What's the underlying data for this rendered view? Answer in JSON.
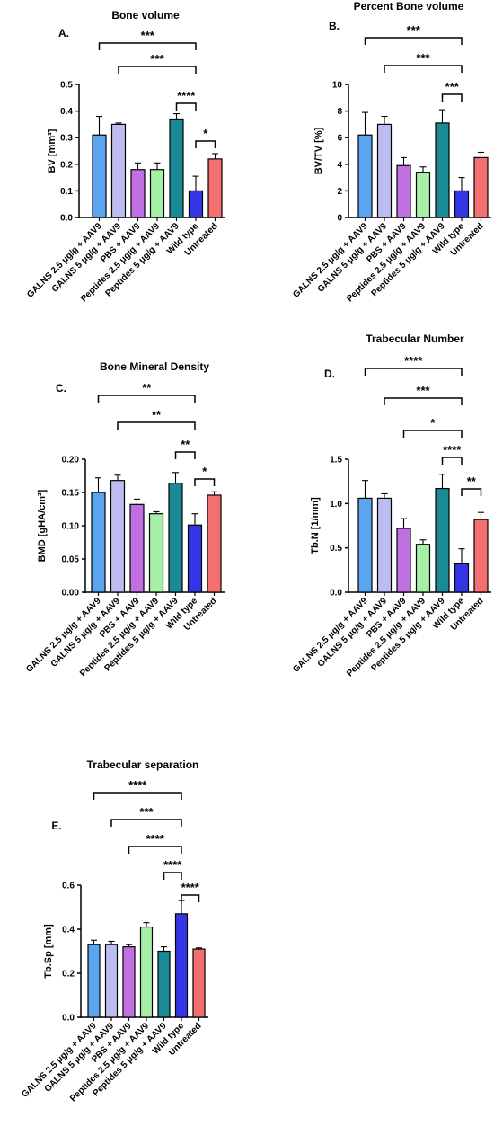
{
  "categories": [
    "GALNS 2.5 μg/g + AAV9",
    "GALNS 5 μg/g + AAV9",
    "PBS + AAV9",
    "Peptides 2.5 μg/g + AAV9",
    "Peptides 5 μg/g + AAV9",
    "Wild type",
    "Untreated"
  ],
  "bar_colors": [
    "#5aa6ee",
    "#bcbcf0",
    "#c070e0",
    "#a6f0a6",
    "#1a8a96",
    "#3535e8",
    "#f47070"
  ],
  "chart_data": [
    {
      "type": "bar",
      "panel": "A.",
      "title": "Bone volume",
      "ylabel": "BV [mm³]",
      "ylim": [
        0,
        0.5
      ],
      "yticks": [
        "0.0",
        "0.1",
        "0.2",
        "0.3",
        "0.4",
        "0.5"
      ],
      "values": [
        0.31,
        0.35,
        0.18,
        0.18,
        0.37,
        0.1,
        0.22
      ],
      "errors": [
        0.07,
        0.005,
        0.025,
        0.025,
        0.02,
        0.055,
        0.02
      ],
      "significance": [
        {
          "from": 0,
          "to": 5,
          "label": "***"
        },
        {
          "from": 1,
          "to": 5,
          "label": "***"
        },
        {
          "from": 4,
          "to": 5,
          "label": "****"
        },
        {
          "from": 5,
          "to": 6,
          "label": "*"
        }
      ]
    },
    {
      "type": "bar",
      "panel": "B.",
      "title": "Percent Bone volume",
      "ylabel": "BV/TV [%]",
      "ylim": [
        0,
        10
      ],
      "yticks": [
        "0",
        "2",
        "4",
        "6",
        "8",
        "10"
      ],
      "values": [
        6.2,
        7.0,
        3.9,
        3.4,
        7.1,
        2.0,
        4.5
      ],
      "errors": [
        1.7,
        0.6,
        0.6,
        0.4,
        1.0,
        1.0,
        0.4
      ],
      "significance": [
        {
          "from": 0,
          "to": 5,
          "label": "***"
        },
        {
          "from": 1,
          "to": 5,
          "label": "***"
        },
        {
          "from": 4,
          "to": 5,
          "label": "***"
        }
      ]
    },
    {
      "type": "bar",
      "panel": "C.",
      "title": "Bone Mineral Density",
      "ylabel": "BMD [gHA/cm³]",
      "ylim": [
        0,
        0.2
      ],
      "yticks": [
        "0.00",
        "0.05",
        "0.10",
        "0.15",
        "0.20"
      ],
      "values": [
        0.15,
        0.168,
        0.132,
        0.118,
        0.164,
        0.101,
        0.146
      ],
      "errors": [
        0.022,
        0.008,
        0.008,
        0.003,
        0.016,
        0.017,
        0.005
      ],
      "significance": [
        {
          "from": 0,
          "to": 5,
          "label": "**"
        },
        {
          "from": 1,
          "to": 5,
          "label": "**"
        },
        {
          "from": 4,
          "to": 5,
          "label": "**"
        },
        {
          "from": 5,
          "to": 6,
          "label": "*"
        }
      ]
    },
    {
      "type": "bar",
      "panel": "D.",
      "title": "Trabecular Number",
      "ylabel": "Tb.N [1/mm]",
      "ylim": [
        0,
        1.5
      ],
      "yticks": [
        "0.0",
        "0.5",
        "1.0",
        "1.5"
      ],
      "values": [
        1.06,
        1.06,
        0.72,
        0.54,
        1.17,
        0.32,
        0.82
      ],
      "errors": [
        0.2,
        0.05,
        0.11,
        0.05,
        0.16,
        0.17,
        0.08
      ],
      "significance": [
        {
          "from": 0,
          "to": 5,
          "label": "****"
        },
        {
          "from": 1,
          "to": 5,
          "label": "***"
        },
        {
          "from": 2,
          "to": 5,
          "label": "*"
        },
        {
          "from": 4,
          "to": 5,
          "label": "****"
        },
        {
          "from": 5,
          "to": 6,
          "label": "**"
        }
      ]
    },
    {
      "type": "bar",
      "panel": "E.",
      "title": "Trabecular separation",
      "ylabel": "Tb.Sp [mm]",
      "ylim": [
        0,
        0.6
      ],
      "yticks": [
        "0.0",
        "0.2",
        "0.4",
        "0.6"
      ],
      "values": [
        0.33,
        0.33,
        0.32,
        0.41,
        0.3,
        0.47,
        0.31
      ],
      "errors": [
        0.02,
        0.015,
        0.01,
        0.02,
        0.02,
        0.06,
        0.005
      ],
      "significance": [
        {
          "from": 0,
          "to": 5,
          "label": "****"
        },
        {
          "from": 1,
          "to": 5,
          "label": "***"
        },
        {
          "from": 2,
          "to": 5,
          "label": "****"
        },
        {
          "from": 4,
          "to": 5,
          "label": "****"
        },
        {
          "from": 5,
          "to": 6,
          "label": "****"
        }
      ]
    }
  ]
}
